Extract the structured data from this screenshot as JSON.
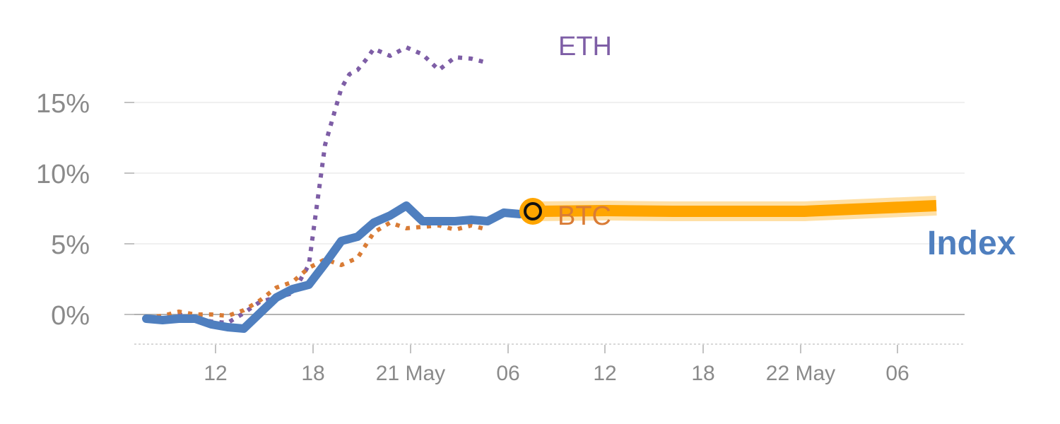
{
  "chart_data": {
    "type": "line",
    "title": "",
    "xlabel": "",
    "ylabel": "",
    "x_tick_labels": [
      "12",
      "18",
      "21 May",
      "06",
      "12",
      "18",
      "22 May",
      "06"
    ],
    "y_tick_labels": [
      "0%",
      "5%",
      "10%",
      "15%"
    ],
    "y_ticks": [
      0,
      5,
      10,
      15
    ],
    "ylim": [
      -2,
      18
    ],
    "grid": true,
    "series": [
      {
        "name": "ETH",
        "style": "dotted",
        "color": "#7e5ea6",
        "x": [
          0,
          1,
          2,
          3,
          4,
          5,
          6,
          7,
          8,
          9,
          10,
          11,
          12,
          12.5,
          13,
          13.5,
          14,
          15,
          16,
          17,
          18,
          19,
          20,
          21,
          22,
          23,
          24
        ],
        "y": [
          -0.2,
          -0.2,
          0,
          -0.2,
          -0.5,
          -0.6,
          0.1,
          0.9,
          1.2,
          1.5,
          3.5,
          12,
          16,
          17,
          17.3,
          18,
          18.8,
          18.3,
          18.9,
          18.4,
          17.3,
          18.2,
          18.1,
          17.8,
          null,
          null,
          null
        ]
      },
      {
        "name": "BTC",
        "style": "dotted",
        "color": "#d97c36",
        "x": [
          0,
          1,
          2,
          3,
          4,
          5,
          6,
          7,
          8,
          9,
          10,
          11,
          12,
          13,
          14,
          15,
          16,
          17,
          18,
          19,
          20,
          21,
          22,
          23,
          24
        ],
        "y": [
          -0.2,
          -0.1,
          0.2,
          0,
          0,
          -0.1,
          0.3,
          1,
          1.9,
          2.3,
          3.3,
          3.9,
          3.5,
          4,
          5.8,
          6.5,
          6.1,
          6.2,
          6.3,
          6,
          6.3,
          6,
          null,
          null,
          null
        ]
      },
      {
        "name": "Index",
        "style": "solid",
        "color": "#4f7fbf",
        "x": [
          0,
          1,
          2,
          3,
          4,
          5,
          6,
          7,
          8,
          9,
          10,
          11,
          12,
          13,
          14,
          15,
          16,
          17,
          18,
          19,
          20,
          21,
          22,
          23,
          24
        ],
        "y": [
          -0.3,
          -0.4,
          -0.3,
          -0.3,
          -0.7,
          -0.9,
          -1,
          0.1,
          1.2,
          1.8,
          2.1,
          3.6,
          5.2,
          5.5,
          6.5,
          7,
          7.7,
          6.6,
          6.6,
          6.6,
          6.7,
          6.6,
          7.2,
          7.1,
          null
        ]
      },
      {
        "name": "",
        "style": "highlight",
        "color": "#ffa500",
        "x": [
          24,
          28,
          32,
          36,
          40,
          44,
          48
        ],
        "y": [
          7.3,
          7.35,
          7.3,
          7.3,
          7.3,
          7.5,
          7.7
        ]
      }
    ],
    "endpoint_marker": {
      "x": 24,
      "y": 7.3
    },
    "labels": {
      "eth": "ETH",
      "btc": "BTC",
      "index": "Index"
    }
  },
  "colors": {
    "eth": "#7e5ea6",
    "btc": "#d97c36",
    "index": "#4f7fbf",
    "highlight": "#ffa500",
    "grid": "#e6e6e6",
    "zero": "#999999",
    "ticks": "#8a8a8a"
  }
}
